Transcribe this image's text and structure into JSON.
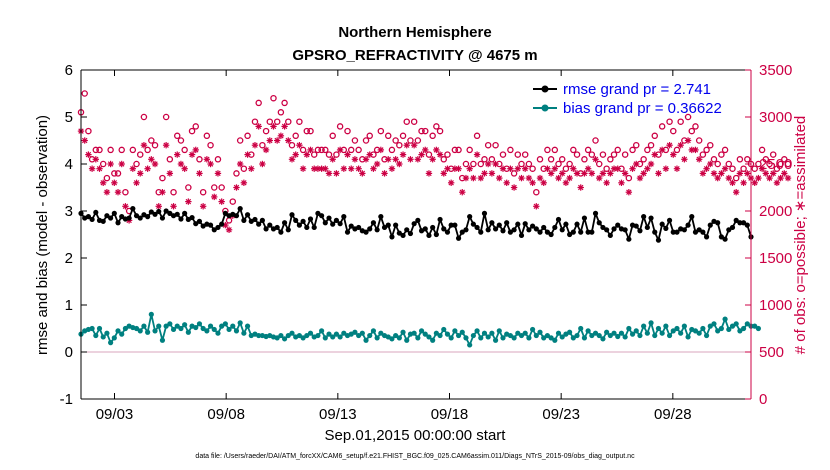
{
  "chart_data": {
    "type": "line",
    "title": "Northern Hemisphere",
    "subtitle": "GPSRO_REFRACTIVITY @ 4675 m",
    "xlabel": "Sep.01,2015 00:00:00 start",
    "ylabel_left": "rmse and bias (model - observation)",
    "ylabel_right": "# of obs: o=possible; ∗=assimilated",
    "footnote": "data file: /Users/raeder/DAI/ATM_forcXX/CAM6_setup/f.e21.FHIST_BGC.f09_025.CAM6assim.011/Diags_NTrS_2015-09/obs_diag_output.nc",
    "x_unit": "days since Sep.01,2015 00:00:00",
    "xlim": [
      0.5,
      30.5
    ],
    "ylim_left": [
      -1,
      6
    ],
    "ylim_right": [
      0,
      3500
    ],
    "x_ticks": [
      2,
      7,
      12,
      17,
      22,
      27
    ],
    "x_tick_labels": [
      "09/03",
      "09/08",
      "09/13",
      "09/18",
      "09/23",
      "09/28"
    ],
    "y_ticks_left": [
      "-1",
      "0",
      "1",
      "2",
      "3",
      "4",
      "5",
      "6"
    ],
    "y_ticks_right": [
      "0",
      "500",
      "1000",
      "1500",
      "2000",
      "2500",
      "3000",
      "3500"
    ],
    "grid": false,
    "legend_position": "top-right",
    "legend": [
      "rmse grand pr = 2.741",
      "bias grand pr = 0.36622"
    ],
    "colors": {
      "rmse": "#000000",
      "bias": "#008080",
      "counts": "#cc0044",
      "legend_text": "#0000ee",
      "zero_line": "#cc88aa"
    },
    "rmse": [
      2.95,
      2.85,
      2.88,
      2.82,
      2.97,
      2.8,
      2.78,
      2.9,
      2.85,
      2.95,
      2.75,
      2.88,
      2.83,
      2.85,
      3.05,
      2.9,
      2.85,
      2.92,
      2.88,
      2.98,
      2.93,
      2.99,
      2.85,
      3.0,
      2.95,
      2.9,
      2.93,
      2.83,
      2.95,
      2.82,
      2.86,
      2.73,
      2.78,
      2.68,
      2.72,
      2.7,
      2.6,
      2.65,
      2.72,
      2.95,
      2.9,
      2.93,
      2.9,
      3.05,
      2.8,
      2.92,
      2.78,
      2.82,
      2.72,
      2.8,
      2.62,
      2.7,
      2.62,
      2.65,
      2.55,
      2.75,
      2.6,
      2.92,
      2.8,
      2.7,
      2.78,
      2.65,
      2.83,
      2.65,
      2.95,
      2.9,
      2.75,
      2.85,
      2.72,
      2.8,
      2.73,
      2.88,
      2.55,
      2.68,
      2.62,
      2.65,
      2.58,
      2.55,
      2.62,
      2.75,
      2.6,
      2.88,
      2.65,
      2.7,
      2.45,
      2.7,
      2.53,
      2.48,
      2.6,
      2.52,
      2.73,
      2.8,
      2.58,
      2.62,
      2.48,
      2.65,
      2.5,
      2.82,
      2.62,
      2.55,
      2.7,
      2.7,
      2.42,
      2.55,
      2.6,
      2.88,
      2.72,
      2.65,
      2.55,
      2.95,
      2.6,
      2.75,
      2.62,
      2.7,
      2.58,
      2.75,
      2.55,
      2.6,
      2.72,
      2.48,
      2.73,
      2.6,
      2.68,
      2.62,
      2.55,
      2.65,
      2.55,
      2.5,
      2.65,
      2.82,
      2.6,
      2.72,
      2.5,
      2.55,
      2.72,
      2.55,
      2.85,
      2.55,
      2.55,
      2.95,
      2.75,
      2.65,
      2.6,
      2.48,
      2.62,
      2.7,
      2.62,
      2.6,
      2.4,
      2.7,
      2.68,
      2.58,
      2.88,
      2.65,
      2.85,
      2.55,
      2.38,
      2.72,
      2.63,
      2.8,
      2.55,
      2.55,
      2.62,
      2.6,
      2.7,
      2.88,
      2.55,
      2.6,
      2.55,
      2.45,
      2.7,
      2.78,
      2.75,
      2.45,
      2.4,
      2.6,
      2.65,
      2.8,
      2.75,
      2.75,
      2.7,
      2.45
    ],
    "bias": [
      0.38,
      0.45,
      0.48,
      0.5,
      0.35,
      0.5,
      0.32,
      0.4,
      0.2,
      0.3,
      0.45,
      0.38,
      0.5,
      0.55,
      0.52,
      0.5,
      0.45,
      0.55,
      0.42,
      0.8,
      0.45,
      0.55,
      0.25,
      0.55,
      0.6,
      0.48,
      0.55,
      0.5,
      0.58,
      0.42,
      0.55,
      0.52,
      0.6,
      0.5,
      0.45,
      0.55,
      0.48,
      0.4,
      0.55,
      0.6,
      0.48,
      0.55,
      0.45,
      0.62,
      0.4,
      0.55,
      0.35,
      0.38,
      0.35,
      0.35,
      0.33,
      0.35,
      0.32,
      0.3,
      0.35,
      0.28,
      0.35,
      0.4,
      0.32,
      0.35,
      0.3,
      0.35,
      0.4,
      0.32,
      0.35,
      0.45,
      0.3,
      0.38,
      0.32,
      0.38,
      0.32,
      0.4,
      0.35,
      0.38,
      0.42,
      0.35,
      0.4,
      0.25,
      0.35,
      0.45,
      0.3,
      0.4,
      0.35,
      0.32,
      0.28,
      0.35,
      0.3,
      0.42,
      0.25,
      0.38,
      0.4,
      0.3,
      0.45,
      0.38,
      0.32,
      0.25,
      0.4,
      0.35,
      0.48,
      0.38,
      0.3,
      0.45,
      0.35,
      0.42,
      0.3,
      0.15,
      0.35,
      0.45,
      0.3,
      0.4,
      0.32,
      0.4,
      0.25,
      0.45,
      0.3,
      0.38,
      0.35,
      0.3,
      0.4,
      0.35,
      0.4,
      0.3,
      0.48,
      0.35,
      0.42,
      0.3,
      0.35,
      0.3,
      0.25,
      0.4,
      0.32,
      0.38,
      0.42,
      0.3,
      0.35,
      0.5,
      0.3,
      0.45,
      0.35,
      0.4,
      0.35,
      0.28,
      0.42,
      0.35,
      0.4,
      0.33,
      0.4,
      0.32,
      0.5,
      0.38,
      0.45,
      0.35,
      0.55,
      0.4,
      0.62,
      0.35,
      0.5,
      0.4,
      0.55,
      0.35,
      0.45,
      0.5,
      0.4,
      0.55,
      0.32,
      0.48,
      0.45,
      0.4,
      0.5,
      0.35,
      0.55,
      0.6,
      0.45,
      0.5,
      0.7,
      0.48,
      0.55,
      0.6,
      0.45,
      0.5,
      0.6,
      0.55,
      0.55,
      0.5
    ],
    "possible": [
      3050,
      3250,
      2850,
      2550,
      2650,
      2650,
      2500,
      2350,
      2650,
      2400,
      2400,
      2650,
      2200,
      2000,
      2650,
      2500,
      2600,
      3000,
      2650,
      2750,
      2700,
      2200,
      2350,
      3000,
      2550,
      2200,
      2800,
      2750,
      2650,
      2250,
      2850,
      2900,
      2550,
      2200,
      2800,
      2700,
      2250,
      2550,
      2250,
      2000,
      1900,
      2100,
      2400,
      2750,
      2450,
      2800,
      2600,
      2950,
      3150,
      2700,
      2850,
      2950,
      3200,
      2950,
      3050,
      3150,
      2950,
      2700,
      2800,
      2950,
      2650,
      2850,
      2850,
      2600,
      2650,
      2650,
      2650,
      2600,
      2800,
      2600,
      2900,
      2650,
      2850,
      2650,
      2750,
      2650,
      2550,
      2750,
      2800,
      2600,
      2650,
      2850,
      2550,
      2800,
      2650,
      2750,
      2700,
      2800,
      2950,
      2750,
      2950,
      2750,
      2850,
      2850,
      2600,
      2800,
      2900,
      2850,
      2550,
      2600,
      2450,
      2650,
      2650,
      2350,
      2500,
      2650,
      2500,
      2800,
      2500,
      2550,
      2700,
      2550,
      2700,
      2500,
      2600,
      2450,
      2650,
      2400,
      2600,
      2500,
      2600,
      2500,
      2450,
      2200,
      2550,
      2450,
      2650,
      2550,
      2650,
      2500,
      2550,
      2450,
      2500,
      2650,
      2600,
      2400,
      2550,
      2650,
      2600,
      2750,
      2500,
      2600,
      2450,
      2550,
      2600,
      2650,
      2450,
      2600,
      2350,
      2650,
      2700,
      2500,
      2550,
      2650,
      2700,
      2800,
      2600,
      2900,
      2650,
      2950,
      2850,
      2650,
      2950,
      2750,
      3000,
      2850,
      2900,
      2750,
      2600,
      2650,
      2700,
      2550,
      2500,
      2600,
      2650,
      2500,
      2450,
      2350,
      2550,
      2450,
      2550,
      2500,
      2450,
      2500,
      2650,
      2550,
      2500,
      2600,
      2450,
      2500,
      2550,
      2500
    ],
    "assimilated": [
      2850,
      2750,
      2600,
      2450,
      2550,
      2450,
      2300,
      2200,
      2500,
      2300,
      2200,
      2500,
      2050,
      1900,
      2450,
      2300,
      2400,
      2700,
      2450,
      2550,
      2500,
      2050,
      2200,
      2700,
      2400,
      2050,
      2600,
      2500,
      2450,
      2100,
      2600,
      2650,
      2400,
      2050,
      2550,
      2500,
      2150,
      2400,
      2100,
      1850,
      1800,
      1950,
      2250,
      2500,
      2300,
      2600,
      2450,
      2700,
      2900,
      2500,
      2650,
      2750,
      2900,
      2750,
      2800,
      2900,
      2750,
      2550,
      2600,
      2700,
      2450,
      2600,
      2650,
      2450,
      2450,
      2450,
      2450,
      2400,
      2550,
      2400,
      2650,
      2450,
      2600,
      2450,
      2550,
      2450,
      2400,
      2550,
      2600,
      2450,
      2500,
      2650,
      2400,
      2550,
      2450,
      2550,
      2500,
      2600,
      2700,
      2550,
      2700,
      2550,
      2600,
      2650,
      2400,
      2550,
      2650,
      2600,
      2400,
      2450,
      2300,
      2450,
      2450,
      2200,
      2350,
      2450,
      2350,
      2600,
      2350,
      2400,
      2500,
      2400,
      2500,
      2350,
      2450,
      2300,
      2450,
      2250,
      2450,
      2350,
      2450,
      2350,
      2300,
      2050,
      2350,
      2300,
      2450,
      2400,
      2450,
      2350,
      2400,
      2300,
      2350,
      2450,
      2400,
      2250,
      2400,
      2450,
      2400,
      2550,
      2350,
      2400,
      2300,
      2400,
      2450,
      2450,
      2300,
      2400,
      2200,
      2450,
      2500,
      2350,
      2400,
      2450,
      2500,
      2600,
      2400,
      2650,
      2450,
      2700,
      2600,
      2450,
      2700,
      2550,
      2750,
      2650,
      2650,
      2550,
      2400,
      2450,
      2500,
      2400,
      2350,
      2400,
      2450,
      2350,
      2300,
      2200,
      2400,
      2300,
      2400,
      2350,
      2300,
      2350,
      2450,
      2400,
      2350,
      2400,
      2300,
      2350,
      2400,
      2350
    ]
  }
}
